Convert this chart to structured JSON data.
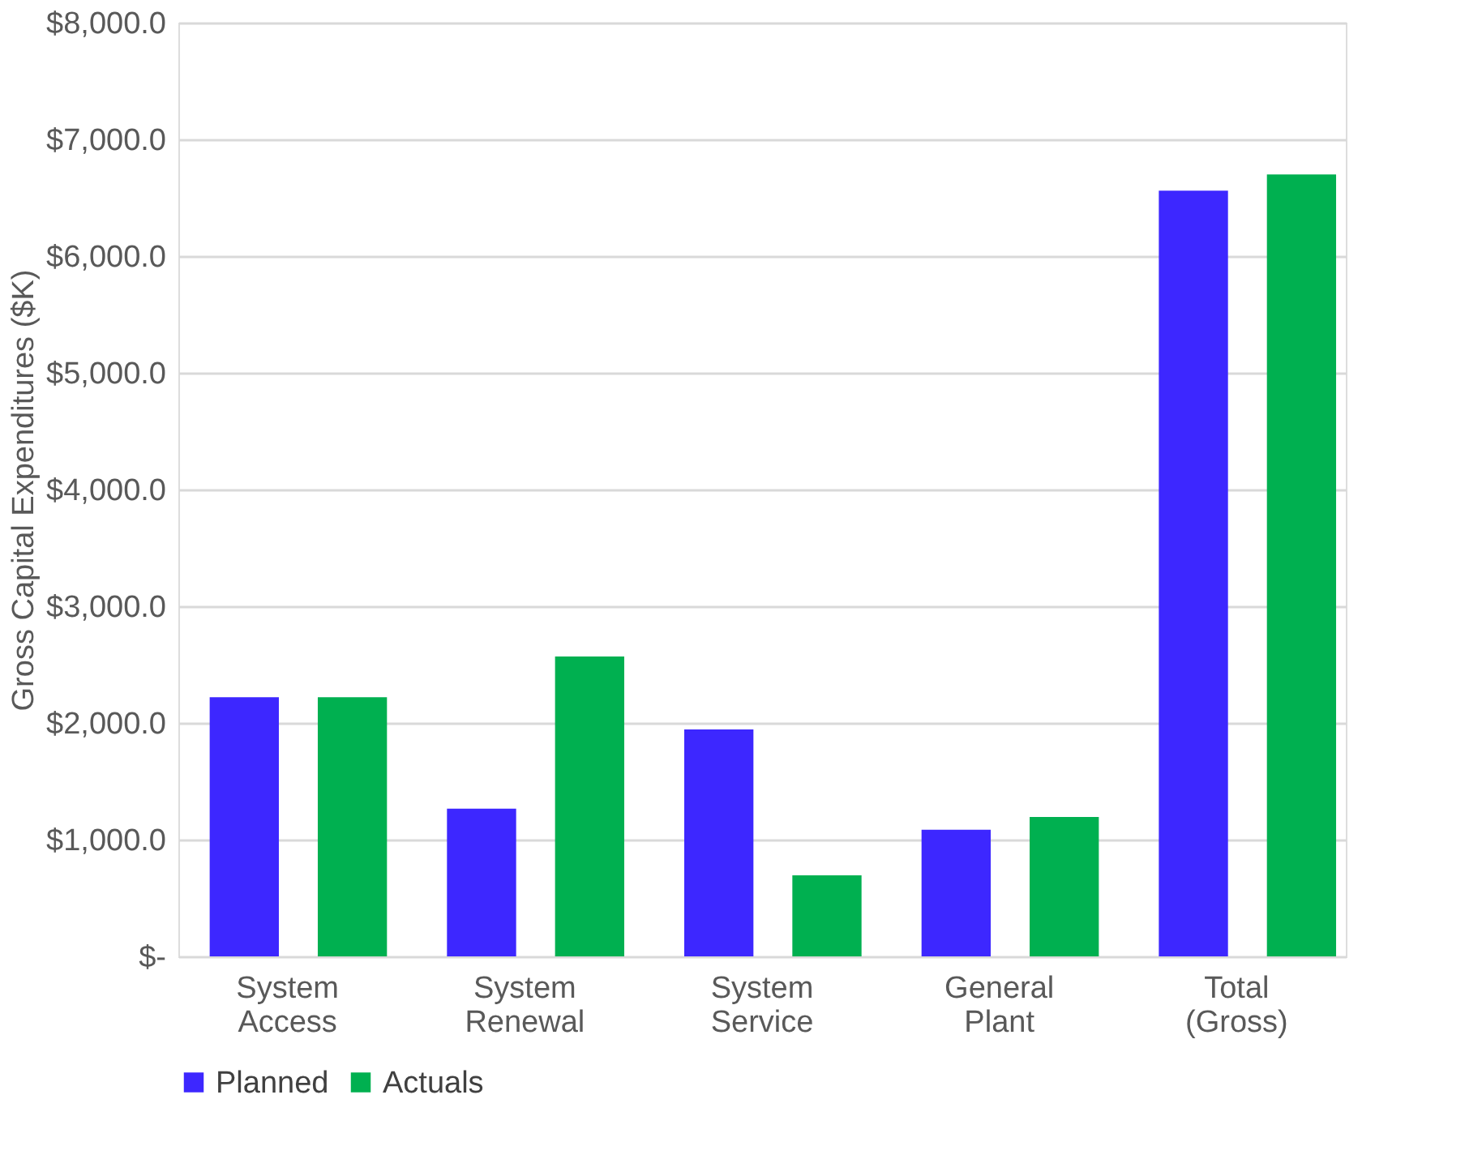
{
  "chart_data": {
    "type": "bar",
    "ylabel": "Gross Capital Expenditures ($K)",
    "categories": [
      "System Access",
      "System Renewal",
      "System Service",
      "General Plant",
      "Total (Gross)"
    ],
    "series": [
      {
        "name": "Planned",
        "color": "#3d27ff",
        "values": [
          2220,
          1265,
          1945,
          1085,
          6560
        ]
      },
      {
        "name": "Actuals",
        "color": "#00b050",
        "values": [
          2220,
          2570,
          695,
          1195,
          6700
        ]
      }
    ],
    "ylim": [
      0,
      8000
    ],
    "yticks": [
      {
        "value": 0,
        "label": "$-"
      },
      {
        "value": 1000,
        "label": "$1,000.0"
      },
      {
        "value": 2000,
        "label": "$2,000.0"
      },
      {
        "value": 3000,
        "label": "$3,000.0"
      },
      {
        "value": 4000,
        "label": "$4,000.0"
      },
      {
        "value": 5000,
        "label": "$5,000.0"
      },
      {
        "value": 6000,
        "label": "$6,000.0"
      },
      {
        "value": 7000,
        "label": "$7,000.0"
      },
      {
        "value": 8000,
        "label": "$8,000.0"
      }
    ],
    "grid": "y",
    "legend": "bottom"
  }
}
